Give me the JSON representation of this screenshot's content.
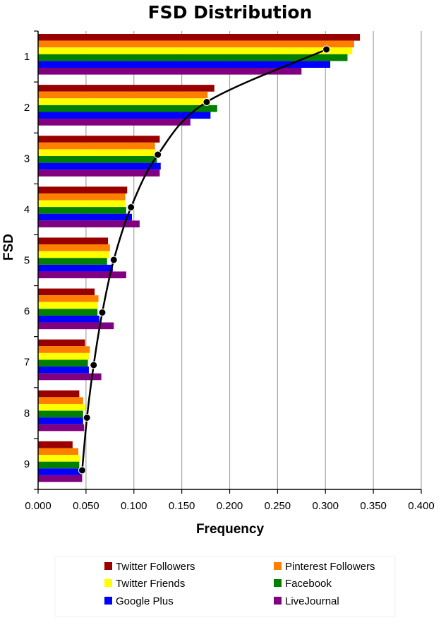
{
  "chart_data": {
    "type": "bar",
    "orientation": "horizontal",
    "title": "FSD Distribution",
    "xlabel": "Frequency",
    "ylabel": "FSD",
    "xlim": [
      0,
      0.4
    ],
    "xticks": [
      "0.000",
      "0.050",
      "0.100",
      "0.150",
      "0.200",
      "0.250",
      "0.300",
      "0.350",
      "0.400"
    ],
    "xtick_values": [
      0,
      0.05,
      0.1,
      0.15,
      0.2,
      0.25,
      0.3,
      0.35,
      0.4
    ],
    "categories": [
      "1",
      "2",
      "3",
      "4",
      "5",
      "6",
      "7",
      "8",
      "9"
    ],
    "grid": "vertical",
    "legend_position": "bottom",
    "series": [
      {
        "name": "Twitter Followers",
        "color": "#990000",
        "values": [
          0.336,
          0.184,
          0.127,
          0.093,
          0.073,
          0.059,
          0.049,
          0.043,
          0.036
        ]
      },
      {
        "name": "Pinterest Followers",
        "color": "#ff8000",
        "values": [
          0.33,
          0.177,
          0.122,
          0.091,
          0.075,
          0.063,
          0.054,
          0.047,
          0.042
        ]
      },
      {
        "name": "Twitter Friends",
        "color": "#ffff00",
        "values": [
          0.328,
          0.18,
          0.123,
          0.091,
          0.074,
          0.062,
          0.053,
          0.049,
          0.044
        ]
      },
      {
        "name": "Facebook",
        "color": "#008000",
        "values": [
          0.323,
          0.187,
          0.124,
          0.092,
          0.072,
          0.062,
          0.052,
          0.047,
          0.043
        ]
      },
      {
        "name": "Google Plus",
        "color": "#0000ff",
        "values": [
          0.305,
          0.18,
          0.128,
          0.098,
          0.078,
          0.064,
          0.053,
          0.047,
          0.046
        ]
      },
      {
        "name": "LiveJournal",
        "color": "#800080",
        "values": [
          0.275,
          0.159,
          0.127,
          0.106,
          0.092,
          0.079,
          0.066,
          0.048,
          0.046
        ]
      }
    ],
    "line_series": {
      "color": "#000000",
      "values": [
        0.301,
        0.176,
        0.125,
        0.097,
        0.079,
        0.067,
        0.058,
        0.051,
        0.046
      ]
    }
  }
}
